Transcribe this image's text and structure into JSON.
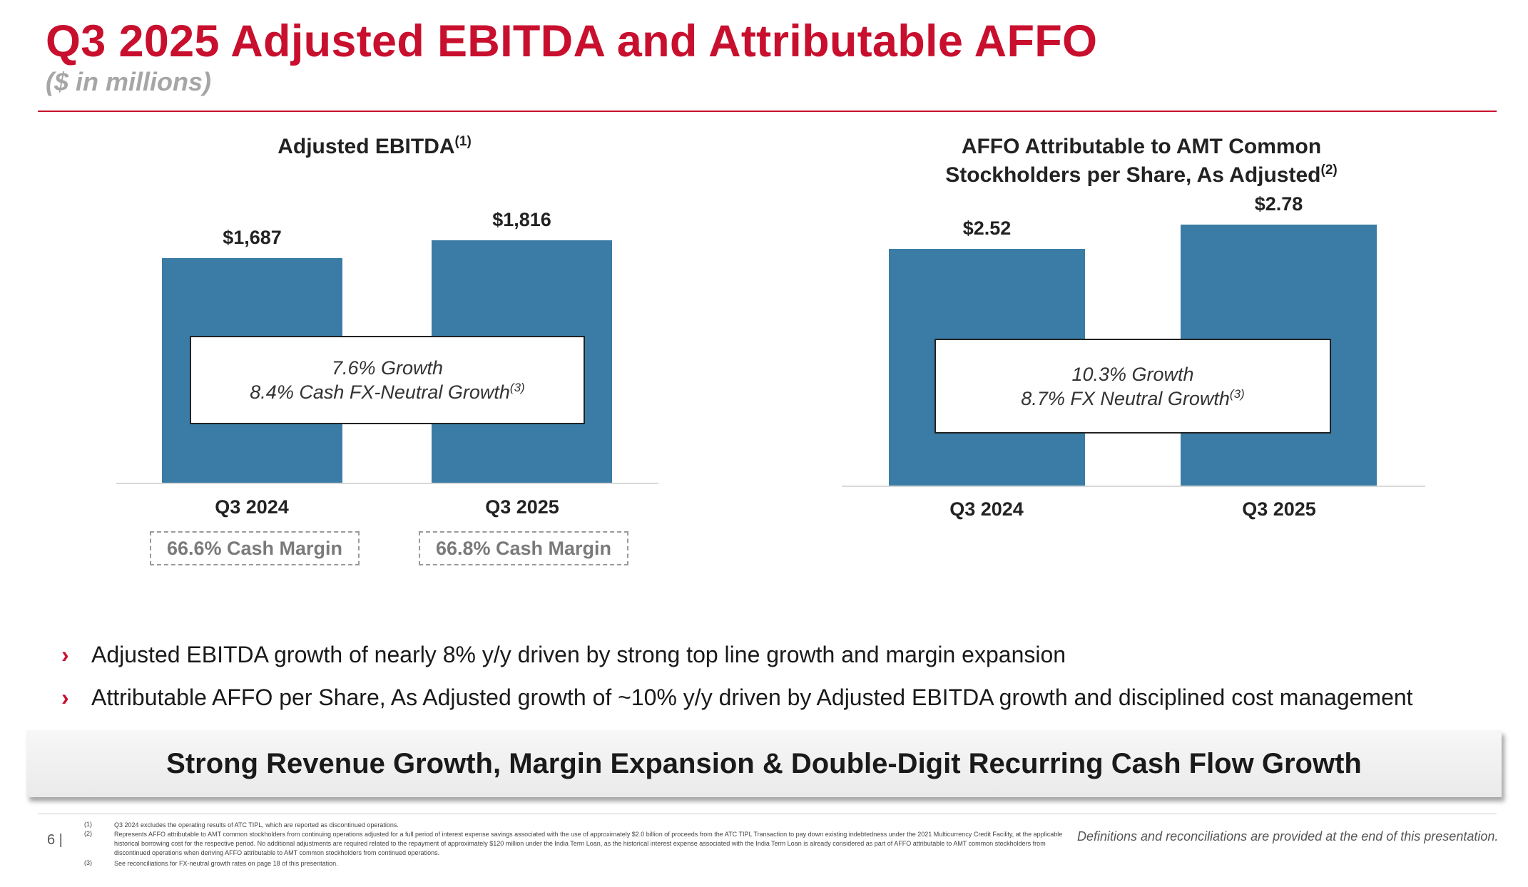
{
  "header": {
    "title": "Q3 2025 Adjusted EBITDA and Attributable AFFO",
    "subtitle": "($ in millions)"
  },
  "chart_data": [
    {
      "type": "bar",
      "title": "Adjusted EBITDA",
      "title_footnote": "(1)",
      "categories": [
        "Q3 2024",
        "Q3 2025"
      ],
      "values": [
        1687,
        1816
      ],
      "value_labels": [
        "$1,687",
        "$1,816"
      ],
      "ylim": [
        0,
        2000
      ],
      "color": "#3a7ca5",
      "growth_lines": [
        "7.6% Growth",
        "8.4% Cash FX-Neutral Growth"
      ],
      "growth_footnote": "(3)",
      "margins": [
        "66.6% Cash Margin",
        "66.8% Cash Margin"
      ],
      "grid": false,
      "legend": "none"
    },
    {
      "type": "bar",
      "title_lines": [
        "AFFO Attributable to AMT Common",
        "Stockholders per Share, As Adjusted"
      ],
      "title_footnote": "(2)",
      "categories": [
        "Q3 2024",
        "Q3 2025"
      ],
      "values": [
        2.52,
        2.78
      ],
      "value_labels": [
        "$2.52",
        "$2.78"
      ],
      "ylim": [
        0,
        3.0
      ],
      "color": "#3a7ca5",
      "growth_lines": [
        "10.3% Growth",
        "8.7% FX Neutral Growth"
      ],
      "growth_footnote": "(3)",
      "grid": false,
      "legend": "none"
    }
  ],
  "bullets": [
    "Adjusted EBITDA growth of nearly 8% y/y driven by strong top line growth and margin expansion",
    "Attributable AFFO per Share, As Adjusted growth of ~10% y/y driven by Adjusted EBITDA growth and disciplined cost management"
  ],
  "bullet_glyph": "›",
  "callout": "Strong Revenue Growth, Margin Expansion & Double-Digit Recurring Cash Flow Growth",
  "footer": {
    "page_number": "6 |",
    "footnotes": [
      {
        "mark": "(1)",
        "text": "Q3 2024 excludes the operating results of ATC TIPL, which are reported as discontinued operations."
      },
      {
        "mark": "(2)",
        "text": "Represents AFFO attributable to AMT common stockholders from continuing operations adjusted for a full period of interest expense savings associated with the use of approximately $2.0 billion of proceeds from the ATC TIPL Transaction to pay down existing indebtedness under the 2021 Multicurrency Credit Facility, at the applicable historical borrowing cost for the respective period. No additional adjustments are required related to the repayment of approximately $120 million under the India Term Loan, as the historical interest expense associated with the India Term Loan is already considered as part of AFFO attributable to AMT common stockholders from discontinued operations when deriving AFFO attributable to AMT common stockholders from continued operations."
      },
      {
        "mark": "(3)",
        "text": "See reconciliations for FX-neutral growth rates on page 18 of this presentation."
      }
    ],
    "definitions_note": "Definitions and reconciliations are provided at the end of this presentation."
  }
}
